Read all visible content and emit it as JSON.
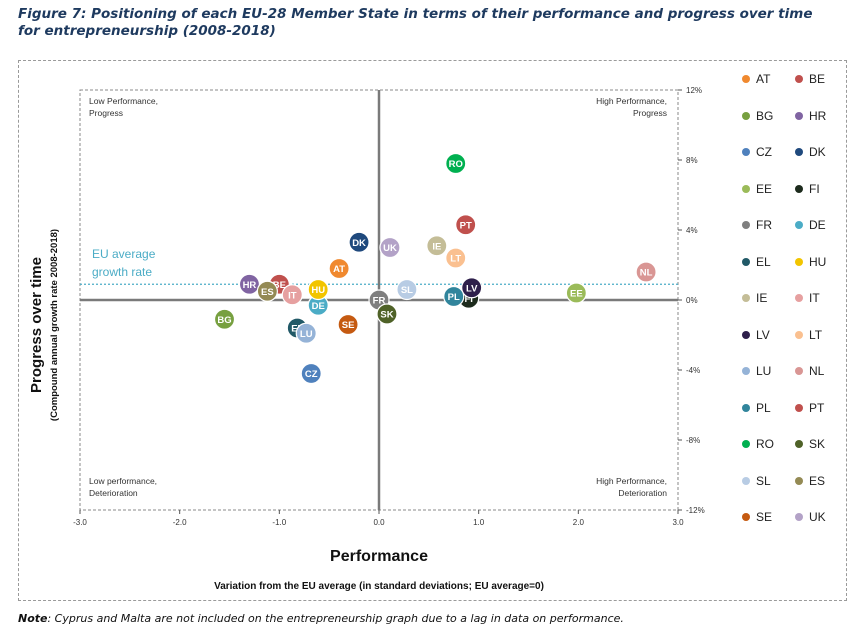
{
  "figure": {
    "title": "Figure 7: Positioning of each EU-28 Member State in terms of their performance and progress over time for entrepreneurship (2008-2018)",
    "note_label": "Note",
    "note_text": ": Cyprus and Malta are not included on the entrepreneurship graph due to a lag in data on performance."
  },
  "chart_data": {
    "type": "scatter",
    "xlabel": "Performance",
    "xlabel_sub": "Variation from the EU average (in standard deviations; EU average=0)",
    "ylabel": "Progress over time",
    "ylabel_sub": "(Compound annual growth rate 2008-2018)",
    "xlim": [
      -3.0,
      3.0
    ],
    "ylim": [
      -12,
      12
    ],
    "x_ticks": [
      -3.0,
      -2.0,
      -1.0,
      0.0,
      1.0,
      2.0,
      3.0
    ],
    "x_tick_labels": [
      "-3.0",
      "-2.0",
      "-1.0",
      "0.0",
      "1.0",
      "2.0",
      "3.0"
    ],
    "y_ticks": [
      12,
      8,
      4,
      0,
      -4,
      -8,
      -12
    ],
    "y_tick_labels": [
      "12%",
      "8%",
      "4%",
      "0%",
      "-4%",
      "-8%",
      "-12%"
    ],
    "eu_average_label_line1": "EU average",
    "eu_average_label_line2": "growth rate",
    "eu_average_growth": 0.9,
    "quadrants": {
      "top_left": [
        "Low Performance,",
        "Progress"
      ],
      "top_right": [
        "High Performance,",
        "Progress"
      ],
      "bottom_left": [
        "Low performance,",
        "Deterioration"
      ],
      "bottom_right": [
        "High Performance,",
        "Deterioration"
      ]
    },
    "points": [
      {
        "code": "AT",
        "x": -0.4,
        "y": 1.8,
        "color": "#f0892f"
      },
      {
        "code": "BE",
        "x": -1.0,
        "y": 0.9,
        "color": "#c0504d"
      },
      {
        "code": "BG",
        "x": -1.55,
        "y": -1.1,
        "color": "#77a040"
      },
      {
        "code": "HR",
        "x": -1.3,
        "y": 0.9,
        "color": "#8064a2"
      },
      {
        "code": "CZ",
        "x": -0.68,
        "y": -4.2,
        "color": "#4f81bd"
      },
      {
        "code": "DK",
        "x": -0.2,
        "y": 3.3,
        "color": "#1f497d"
      },
      {
        "code": "EE",
        "x": 1.98,
        "y": 0.4,
        "color": "#9bbb59"
      },
      {
        "code": "FI",
        "x": 0.9,
        "y": 0.1,
        "color": "#1d2b1d"
      },
      {
        "code": "FR",
        "x": 0.0,
        "y": 0.0,
        "color": "#7f7f7f"
      },
      {
        "code": "DE",
        "x": -0.61,
        "y": -0.3,
        "color": "#4bacc6"
      },
      {
        "code": "EL",
        "x": -0.82,
        "y": -1.6,
        "color": "#215967"
      },
      {
        "code": "HU",
        "x": -0.61,
        "y": 0.6,
        "color": "#f2c500"
      },
      {
        "code": "IE",
        "x": 0.58,
        "y": 3.1,
        "color": "#c4bd97"
      },
      {
        "code": "IT",
        "x": -0.87,
        "y": 0.3,
        "color": "#e6a0a0"
      },
      {
        "code": "LV",
        "x": 0.93,
        "y": 0.7,
        "color": "#2e1f4b"
      },
      {
        "code": "LT",
        "x": 0.77,
        "y": 2.4,
        "color": "#fac090"
      },
      {
        "code": "LU",
        "x": -0.73,
        "y": -1.9,
        "color": "#95b3d7"
      },
      {
        "code": "NL",
        "x": 2.68,
        "y": 1.6,
        "color": "#d99694"
      },
      {
        "code": "PL",
        "x": 0.75,
        "y": 0.2,
        "color": "#31859c"
      },
      {
        "code": "PT",
        "x": 0.87,
        "y": 4.3,
        "color": "#c0504d"
      },
      {
        "code": "RO",
        "x": 0.77,
        "y": 7.8,
        "color": "#00b050"
      },
      {
        "code": "SK",
        "x": 0.08,
        "y": -0.8,
        "color": "#4f6228"
      },
      {
        "code": "SL",
        "x": 0.28,
        "y": 0.6,
        "color": "#b8cce4"
      },
      {
        "code": "ES",
        "x": -1.12,
        "y": 0.5,
        "color": "#948a54"
      },
      {
        "code": "SE",
        "x": -0.31,
        "y": -1.4,
        "color": "#c55a11"
      },
      {
        "code": "UK",
        "x": 0.11,
        "y": 3.0,
        "color": "#b3a2c7"
      }
    ],
    "legend": [
      {
        "code": "AT",
        "color": "#f0892f"
      },
      {
        "code": "BE",
        "color": "#c0504d"
      },
      {
        "code": "BG",
        "color": "#77a040"
      },
      {
        "code": "HR",
        "color": "#8064a2"
      },
      {
        "code": "CZ",
        "color": "#4f81bd"
      },
      {
        "code": "DK",
        "color": "#1f497d"
      },
      {
        "code": "EE",
        "color": "#9bbb59"
      },
      {
        "code": "FI",
        "color": "#1d2b1d"
      },
      {
        "code": "FR",
        "color": "#7f7f7f"
      },
      {
        "code": "DE",
        "color": "#4bacc6"
      },
      {
        "code": "EL",
        "color": "#215967"
      },
      {
        "code": "HU",
        "color": "#f2c500"
      },
      {
        "code": "IE",
        "color": "#c4bd97"
      },
      {
        "code": "IT",
        "color": "#e6a0a0"
      },
      {
        "code": "LV",
        "color": "#2e1f4b"
      },
      {
        "code": "LT",
        "color": "#fac090"
      },
      {
        "code": "LU",
        "color": "#95b3d7"
      },
      {
        "code": "NL",
        "color": "#d99694"
      },
      {
        "code": "PL",
        "color": "#31859c"
      },
      {
        "code": "PT",
        "color": "#c0504d"
      },
      {
        "code": "RO",
        "color": "#00b050"
      },
      {
        "code": "SK",
        "color": "#4f6228"
      },
      {
        "code": "SL",
        "color": "#b8cce4"
      },
      {
        "code": "ES",
        "color": "#948a54"
      },
      {
        "code": "SE",
        "color": "#c55a11"
      },
      {
        "code": "UK",
        "color": "#b3a2c7"
      }
    ],
    "legend_placement": "right",
    "grid": false
  }
}
